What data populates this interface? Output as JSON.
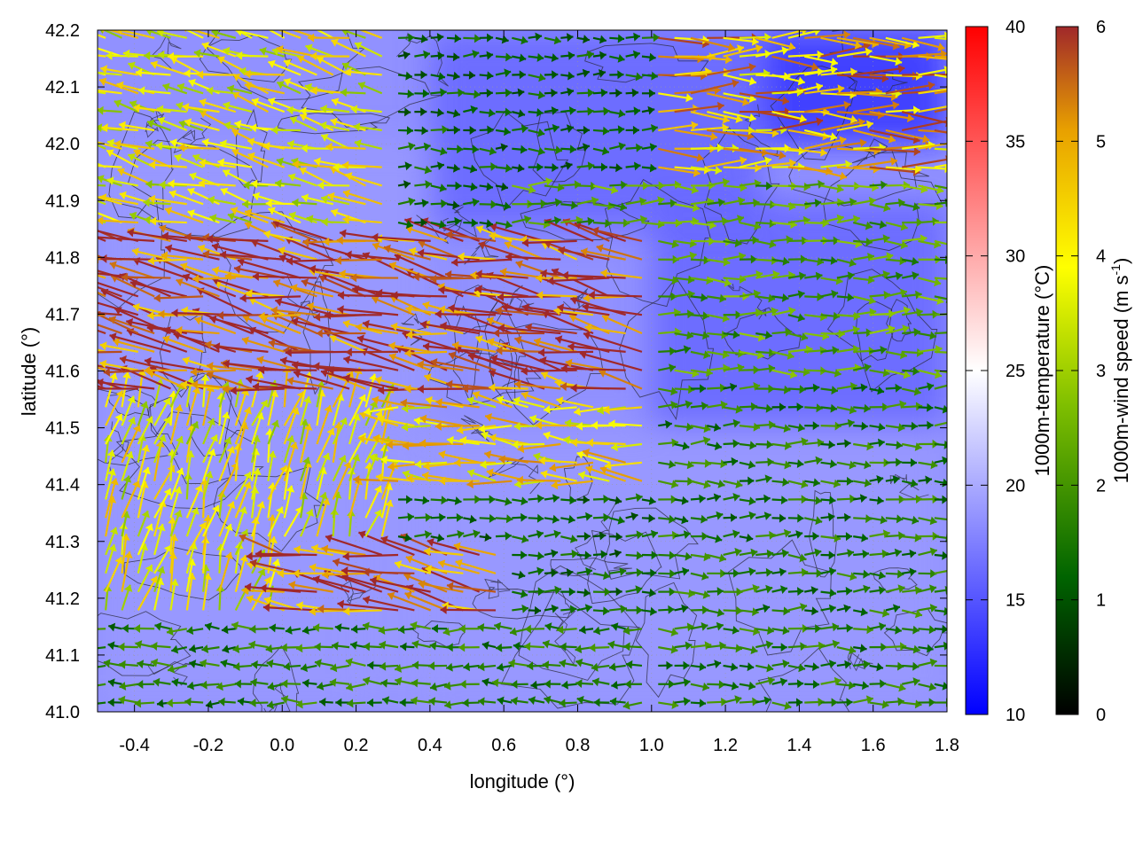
{
  "chart_data": {
    "type": "heatmap",
    "overlays": [
      "vector-field",
      "contour"
    ],
    "xlabel": "longitude (°)",
    "ylabel": "latitude (°)",
    "xlim": [
      -0.5,
      1.8
    ],
    "ylim": [
      41.0,
      42.2
    ],
    "xticks": [
      -0.4,
      -0.2,
      0.0,
      0.2,
      0.4,
      0.6,
      0.8,
      1.0,
      1.2,
      1.4,
      1.6,
      1.8
    ],
    "xtick_labels": [
      "-0.4",
      "-0.2",
      "0.0",
      "0.2",
      "0.4",
      "0.6",
      "0.8",
      "1.0",
      "1.2",
      "1.4",
      "1.6",
      "1.8"
    ],
    "yticks": [
      41.0,
      41.1,
      41.2,
      41.3,
      41.4,
      41.5,
      41.6,
      41.7,
      41.8,
      41.9,
      42.0,
      42.1,
      42.2
    ],
    "ytick_labels": [
      "41.0",
      "41.1",
      "41.2",
      "41.3",
      "41.4",
      "41.5",
      "41.6",
      "41.7",
      "41.8",
      "41.9",
      "42.0",
      "42.1",
      "42.2"
    ],
    "grid": true,
    "temperature_colorbar": {
      "label": "1000m-temperature (°C)",
      "range": [
        10,
        40
      ],
      "ticks": [
        10,
        15,
        20,
        25,
        30,
        35,
        40
      ],
      "tick_labels": [
        "10",
        "15",
        "20",
        "25",
        "30",
        "35",
        "40"
      ],
      "colors": [
        "#0000ff",
        "#ffffff",
        "#ff0000"
      ]
    },
    "wind_colorbar": {
      "label": "1000m-wind speed (m s",
      "label_superscript": "-1",
      "label_close": ")",
      "range": [
        0,
        6
      ],
      "ticks": [
        0,
        1,
        2,
        3,
        4,
        5,
        6
      ],
      "tick_labels": [
        "0",
        "1",
        "2",
        "3",
        "4",
        "5",
        "6"
      ],
      "colors": [
        "#000000",
        "#006400",
        "#7fbf00",
        "#ffff00",
        "#e8a000",
        "#a0282a"
      ]
    },
    "temperature_field_approx": [
      {
        "region": "northeast",
        "lon_range": [
          1.3,
          1.8
        ],
        "lat_range": [
          42.0,
          42.2
        ],
        "value": 13
      },
      {
        "region": "north-central",
        "lon_range": [
          0.4,
          1.3
        ],
        "lat_range": [
          41.85,
          42.2
        ],
        "value": 16
      },
      {
        "region": "east",
        "lon_range": [
          1.0,
          1.8
        ],
        "lat_range": [
          41.5,
          41.9
        ],
        "value": 16
      },
      {
        "region": "west",
        "lon_range": [
          -0.5,
          0.4
        ],
        "lat_range": [
          41.0,
          42.0
        ],
        "value": 19
      },
      {
        "region": "south",
        "lon_range": [
          0.2,
          1.8
        ],
        "lat_range": [
          41.0,
          41.5
        ],
        "value": 19
      }
    ],
    "wind_regions": [
      {
        "lon": [
          1.0,
          1.8
        ],
        "lat": [
          41.95,
          42.2
        ],
        "u": 1,
        "v": 0,
        "speed": 4.5
      },
      {
        "lon": [
          0.6,
          1.8
        ],
        "lat": [
          41.6,
          41.95
        ],
        "u": 1,
        "v": 0,
        "speed": 2.0
      },
      {
        "lon": [
          -0.5,
          0.3
        ],
        "lat": [
          41.85,
          42.2
        ],
        "u": -1,
        "v": 0.25,
        "speed": 3.5
      },
      {
        "lon": [
          -0.5,
          1.0
        ],
        "lat": [
          41.55,
          41.85
        ],
        "u": -1,
        "v": 0.2,
        "speed": 5.8
      },
      {
        "lon": [
          -0.5,
          0.3
        ],
        "lat": [
          41.15,
          41.55
        ],
        "u": 0.3,
        "v": 1,
        "speed": 3.5
      },
      {
        "lon": [
          0.3,
          1.0
        ],
        "lat": [
          41.4,
          41.55
        ],
        "u": -1,
        "v": 0.1,
        "speed": 4.0
      },
      {
        "lon": [
          1.0,
          1.8
        ],
        "lat": [
          41.0,
          41.6
        ],
        "u": 1,
        "v": 0,
        "speed": 1.5
      },
      {
        "lon": [
          0.0,
          0.6
        ],
        "lat": [
          41.15,
          41.3
        ],
        "u": -1,
        "v": 0.2,
        "speed": 5.5
      },
      {
        "lon": [
          -0.5,
          1.0
        ],
        "lat": [
          41.0,
          41.15
        ],
        "u": -1,
        "v": 0,
        "speed": 1.5
      }
    ]
  }
}
